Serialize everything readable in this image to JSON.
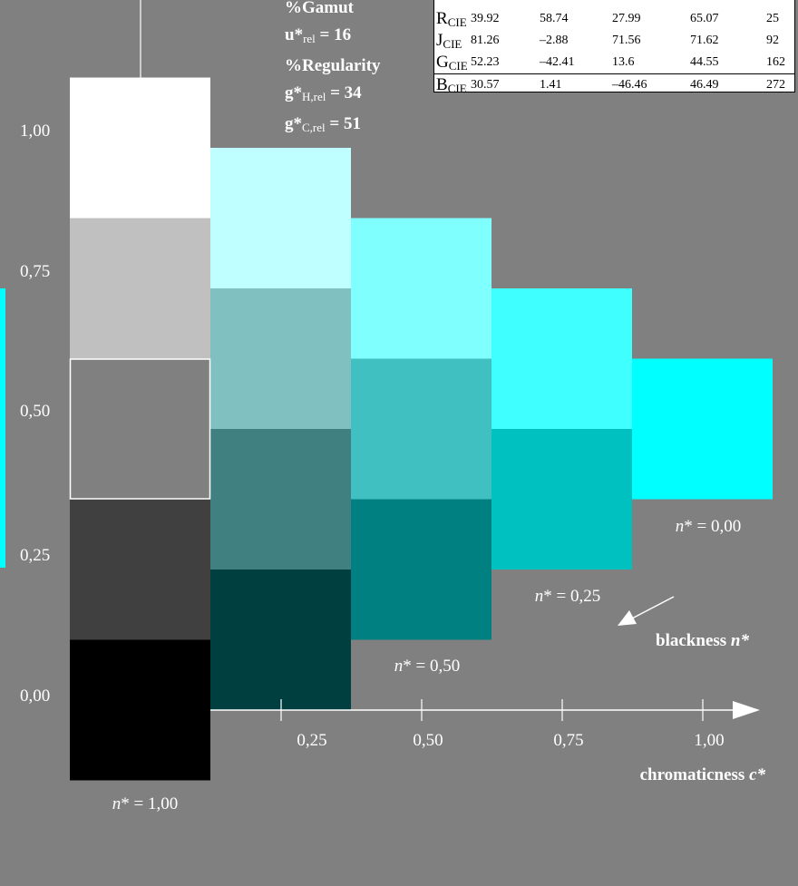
{
  "chart_data": {
    "type": "heatmap",
    "xlabel": "chromaticness c*",
    "x_ticks": [
      "0,25",
      "0,50",
      "0,75",
      "1,00"
    ],
    "y_ticks": [
      "0,00",
      "0,25",
      "0,50",
      "0,75",
      "1,00"
    ],
    "blackness_label": "blackness n*",
    "n_labels": [
      "n* = 1,00",
      "n* = 0,50",
      "n* = 0,25",
      "n* = 0,00"
    ],
    "cells": [
      {
        "c": 0.0,
        "t": 0.0,
        "color": "#000000"
      },
      {
        "c": 0.0,
        "t": 0.25,
        "color": "#404040"
      },
      {
        "c": 0.0,
        "t": 0.5,
        "color": "#808080",
        "highlight": true
      },
      {
        "c": 0.0,
        "t": 0.75,
        "color": "#c0c0c0"
      },
      {
        "c": 0.0,
        "t": 1.0,
        "color": "#ffffff"
      },
      {
        "c": 0.25,
        "t": 0.125,
        "color": "#003f40"
      },
      {
        "c": 0.25,
        "t": 0.375,
        "color": "#408080"
      },
      {
        "c": 0.25,
        "t": 0.625,
        "color": "#80c0c0"
      },
      {
        "c": 0.25,
        "t": 0.875,
        "color": "#c0ffff"
      },
      {
        "c": 0.5,
        "t": 0.25,
        "color": "#008080"
      },
      {
        "c": 0.5,
        "t": 0.5,
        "color": "#40c0c0"
      },
      {
        "c": 0.5,
        "t": 0.75,
        "color": "#80ffff"
      },
      {
        "c": 0.75,
        "t": 0.375,
        "color": "#00c0c0"
      },
      {
        "c": 0.75,
        "t": 0.625,
        "color": "#40ffff"
      },
      {
        "c": 1.0,
        "t": 0.5,
        "color": "#00ffff"
      }
    ]
  },
  "summary": [
    {
      "label": "%Gamut"
    },
    {
      "label": "u*",
      "sub": "rel",
      "value": " = 16"
    },
    {
      "label": "%Regularity"
    },
    {
      "label": "g*",
      "sub": "H,rel",
      "value": " = 34"
    },
    {
      "label": "g*",
      "sub": "C,rel",
      "value": " = 51"
    }
  ],
  "cie_table": {
    "rows": [
      {
        "name": "R",
        "sub": "CIE",
        "v": [
          "39.92",
          "58.74",
          "27.99",
          "65.07",
          "25"
        ]
      },
      {
        "name": "J",
        "sub": "CIE",
        "v": [
          "81.26",
          "–2.88",
          "71.56",
          "71.62",
          "92"
        ]
      },
      {
        "name": "G",
        "sub": "CIE",
        "v": [
          "52.23",
          "–42.41",
          "13.6",
          "44.55",
          "162"
        ]
      },
      {
        "name": "B",
        "sub": "CIE",
        "v": [
          "30.57",
          "1.41",
          "–46.46",
          "46.49",
          "272"
        ]
      }
    ]
  },
  "colors": {
    "background": "#808080",
    "accent": "#00ffff",
    "foreground": "#ffffff"
  }
}
